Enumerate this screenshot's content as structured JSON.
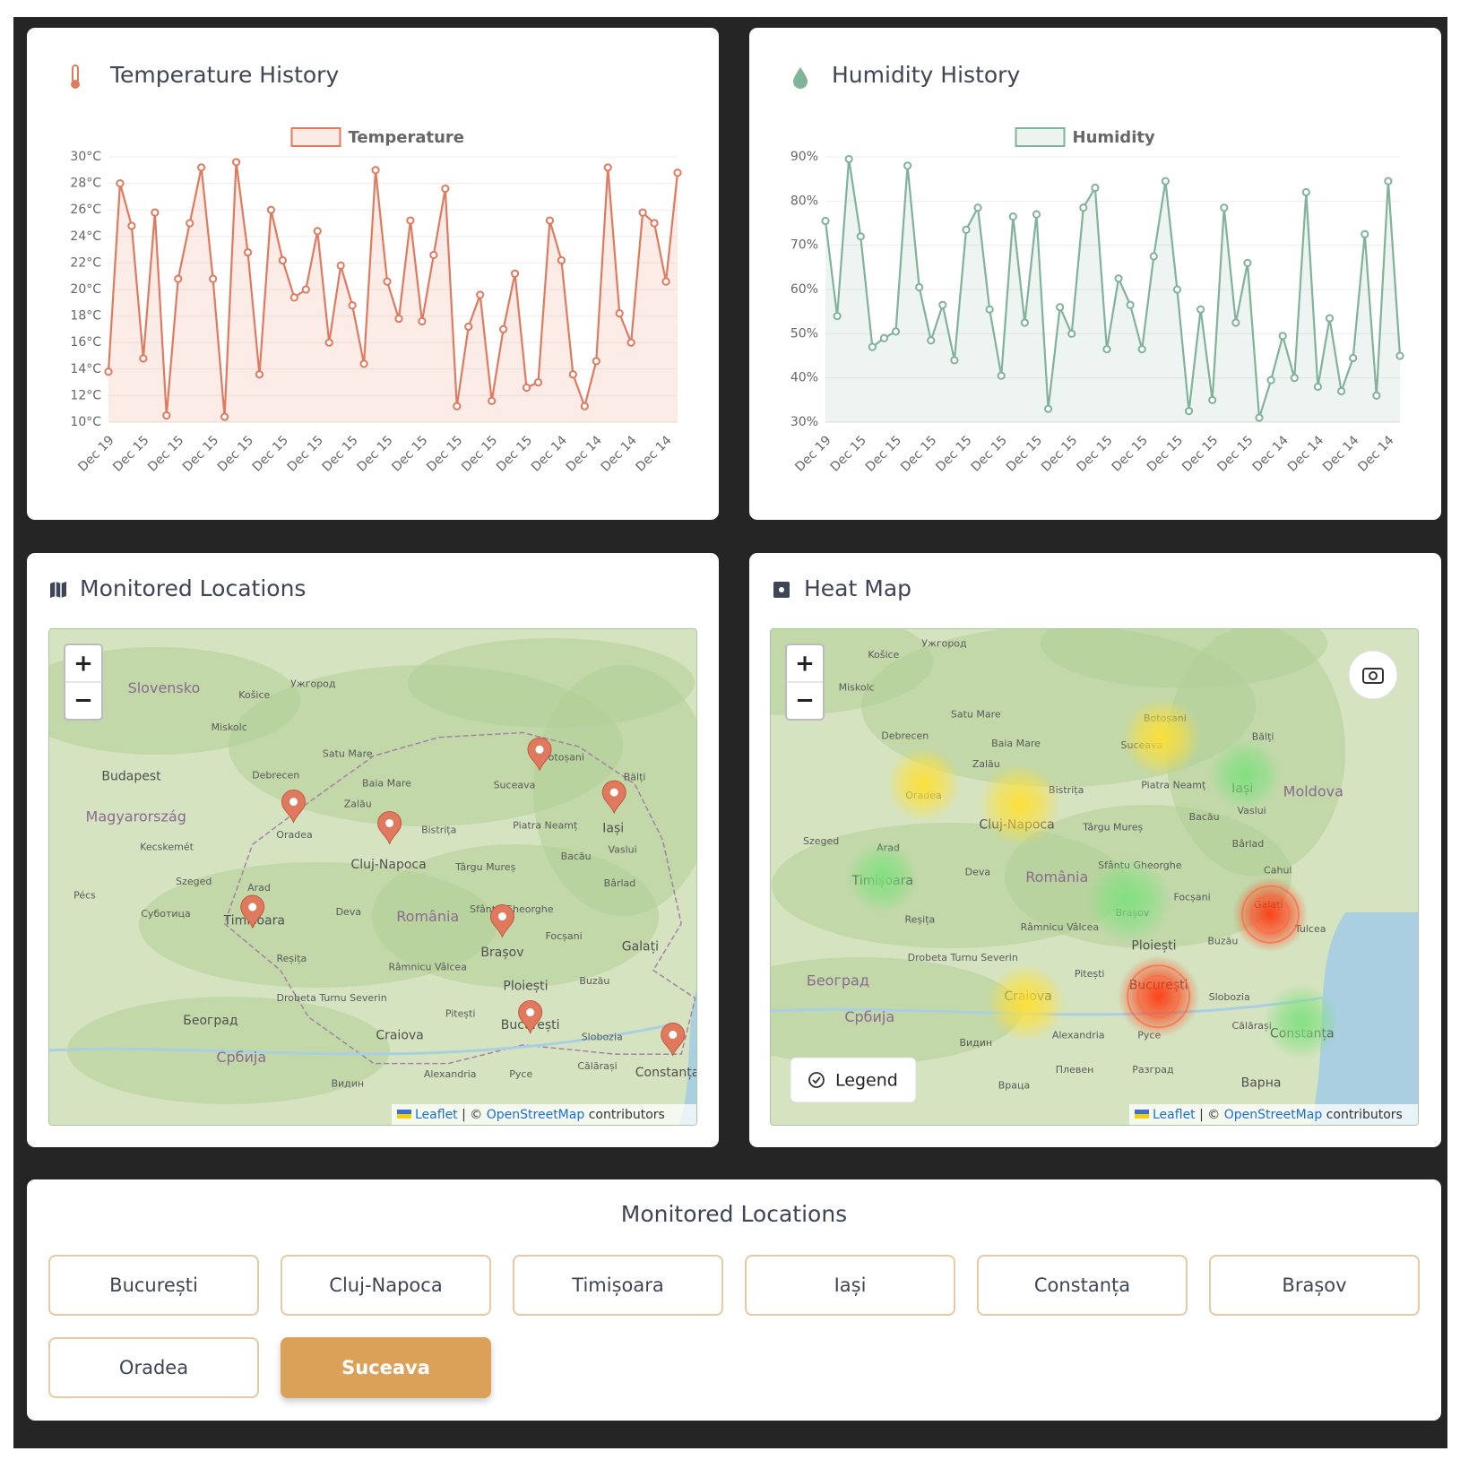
{
  "panels": {
    "temperature_title": "Temperature History",
    "humidity_title": "Humidity History",
    "map_title": "Monitored Locations",
    "heatmap_title": "Heat Map"
  },
  "chart_data": [
    {
      "type": "line",
      "categories": [
        "Dec 19",
        null,
        null,
        "Dec 15",
        null,
        null,
        "Dec 15",
        null,
        null,
        "Dec 15",
        null,
        null,
        "Dec 15",
        null,
        null,
        "Dec 15",
        null,
        null,
        "Dec 15",
        null,
        null,
        "Dec 15",
        null,
        null,
        "Dec 15",
        null,
        null,
        "Dec 15",
        null,
        null,
        "Dec 15",
        null,
        null,
        "Dec 15",
        null,
        null,
        "Dec 15",
        null,
        null,
        "Dec 14",
        null,
        null,
        "Dec 14",
        null,
        null,
        "Dec 14",
        null,
        null,
        "Dec 14",
        null
      ],
      "series": [
        {
          "name": "Temperature",
          "color": "#e07a5f",
          "values": [
            13.8,
            28,
            24.8,
            14.8,
            25.8,
            10.5,
            20.8,
            25,
            29.2,
            20.8,
            10.4,
            29.6,
            22.8,
            13.6,
            26,
            22.2,
            19.4,
            20,
            24.4,
            16,
            21.8,
            18.8,
            14.4,
            29,
            20.6,
            17.8,
            25.2,
            17.6,
            22.6,
            27.6,
            11.2,
            17.2,
            19.6,
            11.6,
            17,
            21.2,
            12.6,
            13,
            25.2,
            22.2,
            13.6,
            11.2,
            14.6,
            29.2,
            18.2,
            16,
            25.8,
            25,
            20.6,
            28.8
          ]
        }
      ],
      "ylim": [
        10,
        30
      ],
      "yticks": [
        {
          "value": 10,
          "label": "10°C"
        },
        {
          "value": 12,
          "label": "12°C"
        },
        {
          "value": 14,
          "label": "14°C"
        },
        {
          "value": 16,
          "label": "16°C"
        },
        {
          "value": 18,
          "label": "18°C"
        },
        {
          "value": 20,
          "label": "20°C"
        },
        {
          "value": 22,
          "label": "22°C"
        },
        {
          "value": 24,
          "label": "24°C"
        },
        {
          "value": 26,
          "label": "26°C"
        },
        {
          "value": 28,
          "label": "28°C"
        },
        {
          "value": 30,
          "label": "30°C"
        }
      ],
      "grid": true,
      "legend": "top"
    },
    {
      "type": "line",
      "categories": [
        "Dec 19",
        null,
        null,
        "Dec 15",
        null,
        null,
        "Dec 15",
        null,
        null,
        "Dec 15",
        null,
        null,
        "Dec 15",
        null,
        null,
        "Dec 15",
        null,
        null,
        "Dec 15",
        null,
        null,
        "Dec 15",
        null,
        null,
        "Dec 15",
        null,
        null,
        "Dec 15",
        null,
        null,
        "Dec 15",
        null,
        null,
        "Dec 15",
        null,
        null,
        "Dec 15",
        null,
        null,
        "Dec 14",
        null,
        null,
        "Dec 14",
        null,
        null,
        "Dec 14",
        null,
        null,
        "Dec 14",
        null
      ],
      "series": [
        {
          "name": "Humidity",
          "color": "#81b29a",
          "values": [
            75.5,
            54,
            89.5,
            72,
            47,
            49,
            50.5,
            88,
            60.5,
            48.5,
            56.5,
            44,
            73.5,
            78.5,
            55.5,
            40.5,
            76.5,
            52.5,
            77,
            33,
            56,
            50,
            78.5,
            83,
            46.5,
            62.5,
            56.5,
            46.5,
            67.5,
            84.5,
            60,
            32.5,
            55.5,
            35,
            78.5,
            52.5,
            66,
            31,
            39.5,
            49.5,
            40,
            82,
            38,
            53.5,
            37,
            44.5,
            72.5,
            36,
            84.5,
            45
          ]
        }
      ],
      "ylim": [
        30,
        90
      ],
      "yticks": [
        {
          "value": 30,
          "label": "30%"
        },
        {
          "value": 40,
          "label": "40%"
        },
        {
          "value": 50,
          "label": "50%"
        },
        {
          "value": 60,
          "label": "60%"
        },
        {
          "value": 70,
          "label": "70%"
        },
        {
          "value": 80,
          "label": "80%"
        },
        {
          "value": 90,
          "label": "90%"
        }
      ],
      "grid": true,
      "legend": "top"
    }
  ],
  "map": {
    "zoom_in": "+",
    "zoom_out": "−",
    "labels": [
      "Slovensko",
      "Košice",
      "Ужгород",
      "Miskolc",
      "Budapest",
      "Magyarország",
      "Debrecen",
      "Satu Mare",
      "Baia Mare",
      "Zalău",
      "Oradea",
      "Bistrița",
      "Cluj-Napoca",
      "Târgu Mureș",
      "Suceava",
      "Botoșani",
      "Bălți",
      "Iași",
      "Piatra Neamț",
      "Vaslui",
      "Bacău",
      "Kecskemét",
      "Szeged",
      "Arad",
      "Pécs",
      "Суботица",
      "Timișoara",
      "Deva",
      "România",
      "Sfântu Gheorghe",
      "Brașov",
      "Bârlad",
      "Focșani",
      "Galați",
      "Reșița",
      "Drobeta Turnu Severin",
      "Râmnicu Vâlcea",
      "Ploiești",
      "Buzău",
      "Pitești",
      "București",
      "Београд",
      "Craiova",
      "Slobozia",
      "Србија",
      "Alexandria",
      "Русе",
      "Călărași",
      "Constanța",
      "Видин"
    ]
  },
  "heatmap": {
    "zoom_in": "+",
    "zoom_out": "−",
    "legend": "Legend",
    "labels": [
      "Košice",
      "Ужгород",
      "Miskolc",
      "Satu Mare",
      "Debrecen",
      "Baia Mare",
      "Zalău",
      "Botoșani",
      "Suceava",
      "Bălți",
      "Oradea",
      "Bistrița",
      "Piatra Neamț",
      "Iași",
      "Moldova",
      "Cluj-Napoca",
      "Târgu Mureș",
      "Bacău",
      "Vaslui",
      "Szeged",
      "Arad",
      "Bârlad",
      "Timișoara",
      "Deva",
      "România",
      "Sfântu Gheorghe",
      "Cahul",
      "Brașov",
      "Focșani",
      "Galați",
      "Reșița",
      "Râmnicu Vâlcea",
      "Tulcea",
      "Drobeta Turnu Severin",
      "Ploiești",
      "Buzău",
      "Pitești",
      "Београд",
      "București",
      "Craiova",
      "Slobozia",
      "Србија",
      "Alexandria",
      "Русе",
      "Călărași",
      "Constanța",
      "Видин",
      "Плевен",
      "Разград",
      "Враца",
      "Варна"
    ]
  },
  "attribution": {
    "leaflet": "Leaflet",
    "separator": "| ©",
    "osm": "OpenStreetMap",
    "suffix": "contributors"
  },
  "locations": {
    "title": "Monitored Locations",
    "buttons": [
      "București",
      "Cluj-Napoca",
      "Timișoara",
      "Iași",
      "Constanța",
      "Brașov",
      "Oradea",
      "Suceava"
    ],
    "active": 7
  }
}
